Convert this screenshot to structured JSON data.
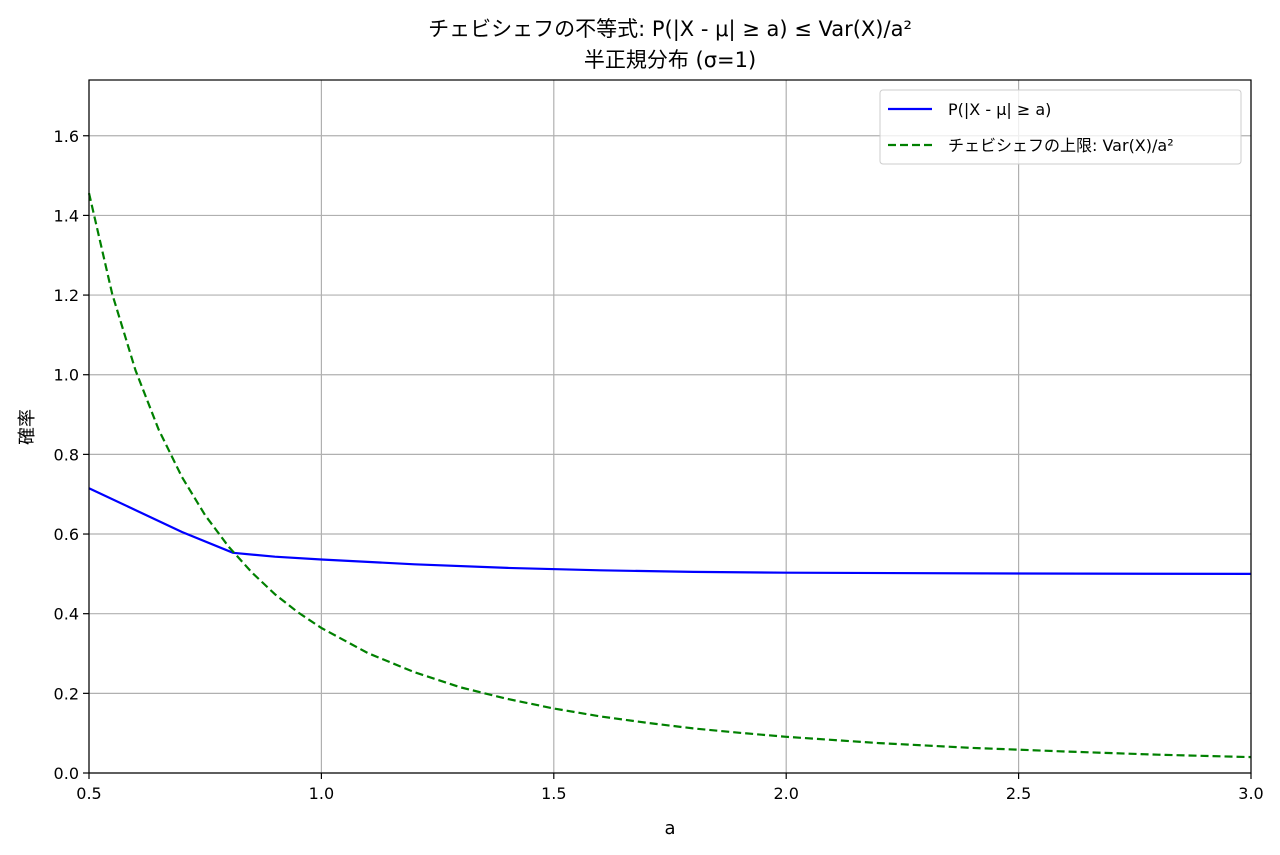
{
  "chart_data": {
    "type": "line",
    "title": "チェビシェフの不等式: P(|X - μ| ≥ a) ≤ Var(X)/a²",
    "subtitle": "半正規分布 (σ=1)",
    "xlabel": "a",
    "ylabel": "確率",
    "xlim": [
      0.5,
      3.0
    ],
    "ylim": [
      0.0,
      1.74
    ],
    "xticks": [
      0.5,
      1.0,
      1.5,
      2.0,
      2.5,
      3.0
    ],
    "xtick_labels": [
      "0.5",
      "1.0",
      "1.5",
      "2.0",
      "2.5",
      "3.0"
    ],
    "yticks": [
      0.0,
      0.2,
      0.4,
      0.6,
      0.8,
      1.0,
      1.2,
      1.4,
      1.6
    ],
    "ytick_labels": [
      "0.0",
      "0.2",
      "0.4",
      "0.6",
      "0.8",
      "1.0",
      "1.2",
      "1.4",
      "1.6"
    ],
    "grid": true,
    "legend_position": "top-right",
    "series": [
      {
        "name": "P(|X - μ| ≥ a)",
        "color": "#0000ff",
        "style": "solid",
        "x": [
          0.5,
          0.6,
          0.7,
          0.81,
          0.9,
          1.0,
          1.2,
          1.4,
          1.6,
          1.8,
          2.0,
          2.5,
          3.0
        ],
        "y": [
          0.715,
          0.66,
          0.605,
          0.553,
          0.543,
          0.536,
          0.524,
          0.515,
          0.509,
          0.505,
          0.503,
          0.501,
          0.5
        ]
      },
      {
        "name": "チェビシェフの上限: Var(X)/a²",
        "color": "#008000",
        "style": "dashed",
        "x": [
          0.5,
          0.55,
          0.6,
          0.65,
          0.7,
          0.75,
          0.8,
          0.85,
          0.9,
          0.95,
          1.0,
          1.1,
          1.2,
          1.3,
          1.4,
          1.5,
          1.6,
          1.7,
          1.8,
          1.9,
          2.0,
          2.2,
          2.4,
          2.6,
          2.8,
          3.0
        ],
        "y": [
          1.456,
          1.203,
          1.011,
          0.862,
          0.743,
          0.647,
          0.569,
          0.504,
          0.449,
          0.403,
          0.364,
          0.301,
          0.253,
          0.215,
          0.186,
          0.162,
          0.142,
          0.126,
          0.112,
          0.101,
          0.091,
          0.075,
          0.063,
          0.054,
          0.046,
          0.04
        ]
      }
    ]
  }
}
